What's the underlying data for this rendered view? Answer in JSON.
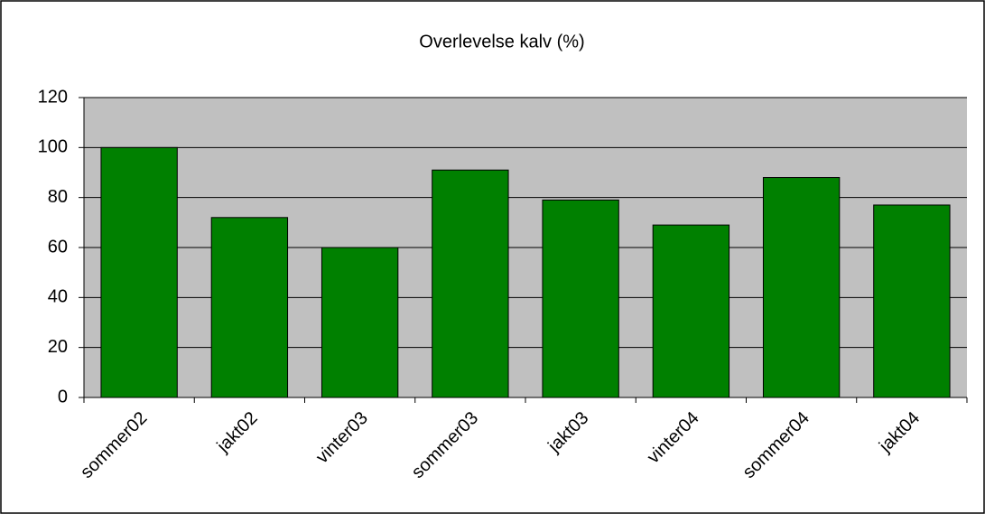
{
  "chart_data": {
    "type": "bar",
    "title": "Overlevelse kalv (%)",
    "categories": [
      "sommer02",
      "jakt02",
      "vinter03",
      "sommer03",
      "jakt03",
      "vinter04",
      "sommer04",
      "jakt04"
    ],
    "values": [
      100,
      72,
      60,
      91,
      79,
      69,
      88,
      77
    ],
    "color": "#008000",
    "ylim": [
      0,
      120
    ],
    "yticks": [
      0,
      20,
      40,
      60,
      80,
      100,
      120
    ],
    "grid": true
  }
}
